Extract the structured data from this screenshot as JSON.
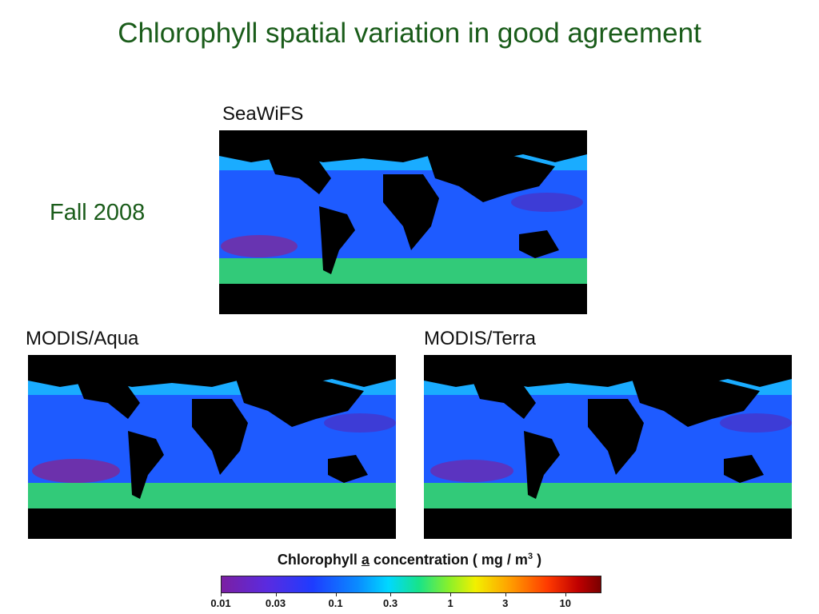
{
  "slide": {
    "title": "Chlorophyll spatial variation in good agreement",
    "season": "Fall 2008"
  },
  "maps": [
    {
      "label": "SeaWiFS"
    },
    {
      "label": "MODIS/Aqua"
    },
    {
      "label": "MODIS/Terra"
    }
  ],
  "colorbar": {
    "title_prefix": "Chlorophyll ",
    "title_a": "a",
    "title_suffix": " concentration ( mg / m",
    "title_exp": "3",
    "title_close": " )",
    "ticks": [
      "0.01",
      "0.03",
      "0.1",
      "0.3",
      "1",
      "3",
      "10"
    ],
    "range_min": 0.01,
    "range_max": 20,
    "scale": "log"
  }
}
